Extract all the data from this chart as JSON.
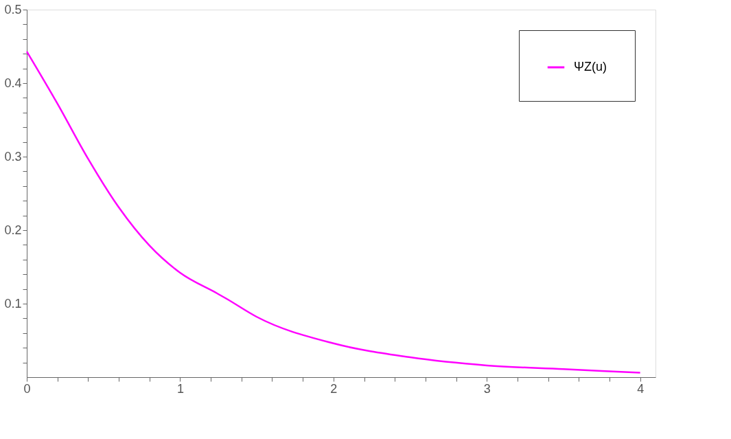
{
  "chart_data": {
    "type": "line",
    "x": [
      0,
      0.2,
      0.4,
      0.6,
      0.8,
      1.0,
      1.241,
      1.3,
      1.5,
      2,
      2.5,
      3,
      3.5,
      4
    ],
    "series": [
      {
        "name": "ΨZ(u)",
        "color": "#ff00ff",
        "values": [
          0.443,
          0.372,
          0.297,
          0.231,
          0.179,
          0.142,
          0.114,
          0.107,
          0.082,
          0.046,
          0.027,
          0.016,
          0.011,
          0.006
        ]
      }
    ],
    "xlim": [
      0,
      4.1
    ],
    "ylim": [
      0,
      0.5
    ],
    "xticks": [
      0,
      {
        "value": 0.2,
        "label": null
      },
      {
        "value": 0.4,
        "label": null
      },
      {
        "value": 0.6,
        "label": null
      },
      {
        "value": 0.8,
        "label": null
      },
      1,
      {
        "value": 1.2,
        "label": null
      },
      {
        "value": 1.4,
        "label": null
      },
      {
        "value": 1.6,
        "label": null
      },
      {
        "value": 1.8,
        "label": null
      },
      2,
      {
        "value": 2.2,
        "label": null
      },
      {
        "value": 2.4,
        "label": null
      },
      {
        "value": 2.6,
        "label": null
      },
      {
        "value": 2.8,
        "label": null
      },
      3,
      {
        "value": 3.2,
        "label": null
      },
      {
        "value": 3.4,
        "label": null
      },
      {
        "value": 3.6,
        "label": null
      },
      {
        "value": 3.8,
        "label": null
      },
      4
    ],
    "yticks": [
      {
        "value": 0.02,
        "label": null
      },
      {
        "value": 0.04,
        "label": null
      },
      {
        "value": 0.06,
        "label": null
      },
      {
        "value": 0.08,
        "label": null
      },
      0.1,
      {
        "value": 0.12,
        "label": null
      },
      {
        "value": 0.14,
        "label": null
      },
      {
        "value": 0.16,
        "label": null
      },
      {
        "value": 0.18,
        "label": null
      },
      0.2,
      {
        "value": 0.22,
        "label": null
      },
      {
        "value": 0.24,
        "label": null
      },
      {
        "value": 0.26,
        "label": null
      },
      {
        "value": 0.28,
        "label": null
      },
      0.3,
      {
        "value": 0.32,
        "label": null
      },
      {
        "value": 0.34,
        "label": null
      },
      {
        "value": 0.36,
        "label": null
      },
      {
        "value": 0.38,
        "label": null
      },
      0.4,
      {
        "value": 0.42,
        "label": null
      },
      {
        "value": 0.44,
        "label": null
      },
      {
        "value": 0.46,
        "label": null
      },
      {
        "value": 0.48,
        "label": null
      },
      0.5
    ],
    "grid": false,
    "legend": "top right",
    "marker": "none",
    "line_style": "solid"
  }
}
